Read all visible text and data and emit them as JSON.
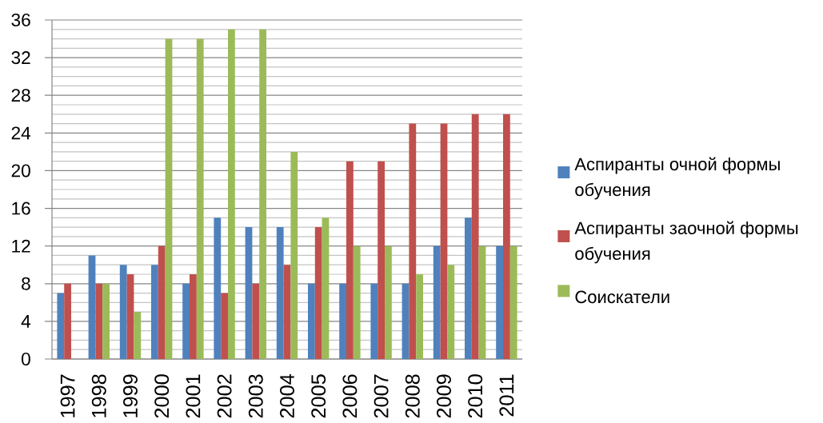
{
  "chart_data": {
    "type": "bar",
    "categories": [
      "1997",
      "1998",
      "1999",
      "2000",
      "2001",
      "2002",
      "2003",
      "2004",
      "2005",
      "2006",
      "2007",
      "2008",
      "2009",
      "2010",
      "2011"
    ],
    "series": [
      {
        "name": "Аспиранты очной формы обучения",
        "color": "#4f81bd",
        "values": [
          7,
          11,
          10,
          10,
          8,
          15,
          14,
          14,
          8,
          8,
          8,
          8,
          12,
          15,
          12
        ]
      },
      {
        "name": "Аспиранты заочной формы обучения",
        "color": "#c0504d",
        "values": [
          8,
          8,
          9,
          12,
          9,
          7,
          8,
          10,
          14,
          21,
          21,
          25,
          25,
          26,
          26
        ]
      },
      {
        "name": "Соискатели",
        "color": "#9bbb59",
        "values": [
          null,
          8,
          5,
          34,
          34,
          35,
          35,
          22,
          15,
          12,
          12,
          9,
          10,
          12,
          12
        ]
      }
    ],
    "ylim": [
      0,
      36
    ],
    "yticks": [
      0,
      {
        "value": 1,
        "label": null
      },
      {
        "value": 2,
        "label": null
      },
      {
        "value": 3,
        "label": null
      },
      4,
      {
        "value": 5,
        "label": null
      },
      {
        "value": 6,
        "label": null
      },
      {
        "value": 7,
        "label": null
      },
      8,
      {
        "value": 9,
        "label": null
      },
      {
        "value": 10,
        "label": null
      },
      {
        "value": 11,
        "label": null
      },
      12,
      {
        "value": 13,
        "label": null
      },
      {
        "value": 14,
        "label": null
      },
      {
        "value": 15,
        "label": null
      },
      16,
      {
        "value": 17,
        "label": null
      },
      {
        "value": 18,
        "label": null
      },
      {
        "value": 19,
        "label": null
      },
      20,
      {
        "value": 21,
        "label": null
      },
      {
        "value": 22,
        "label": null
      },
      {
        "value": 23,
        "label": null
      },
      24,
      {
        "value": 25,
        "label": null
      },
      {
        "value": 26,
        "label": null
      },
      {
        "value": 27,
        "label": null
      },
      28,
      {
        "value": 29,
        "label": null
      },
      {
        "value": 30,
        "label": null
      },
      {
        "value": 31,
        "label": null
      },
      32,
      {
        "value": 33,
        "label": null
      },
      {
        "value": 34,
        "label": null
      },
      {
        "value": 35,
        "label": null
      },
      36
    ],
    "grid": "y",
    "legend": "right"
  }
}
